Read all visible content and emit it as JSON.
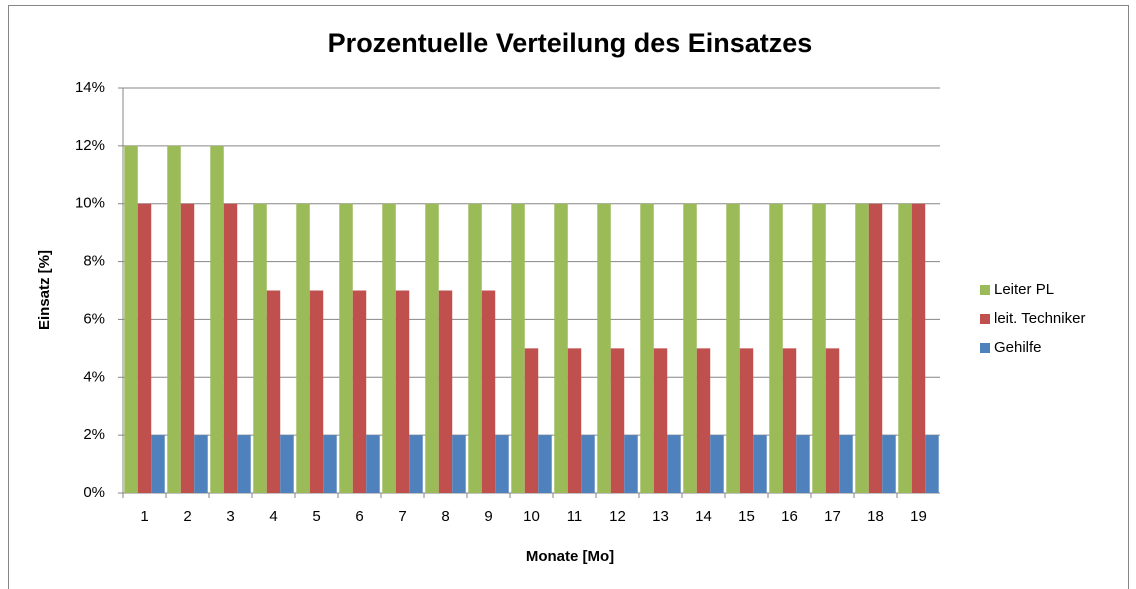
{
  "chart_data": {
    "type": "bar",
    "title": "Prozentuelle Verteilung des Einsatzes",
    "x_label": "Monate [Mo]",
    "y_label": "Einsatz [%]",
    "categories": [
      "1",
      "2",
      "3",
      "4",
      "5",
      "6",
      "7",
      "8",
      "9",
      "10",
      "11",
      "12",
      "13",
      "14",
      "15",
      "16",
      "17",
      "18",
      "19"
    ],
    "series": [
      {
        "name": "Leiter PL",
        "color": "#9bbb59",
        "values": [
          12,
          12,
          12,
          10,
          10,
          10,
          10,
          10,
          10,
          10,
          10,
          10,
          10,
          10,
          10,
          10,
          10,
          10,
          10
        ]
      },
      {
        "name": "leit. Techniker",
        "color": "#c0504d",
        "values": [
          10,
          10,
          10,
          7,
          7,
          7,
          7,
          7,
          7,
          5,
          5,
          5,
          5,
          5,
          5,
          5,
          5,
          10,
          10
        ]
      },
      {
        "name": "Gehilfe",
        "color": "#4f81bd",
        "values": [
          2,
          2,
          2,
          2,
          2,
          2,
          2,
          2,
          2,
          2,
          2,
          2,
          2,
          2,
          2,
          2,
          2,
          2,
          2
        ]
      }
    ],
    "ylim": [
      0,
      14
    ],
    "yticks": [
      {
        "value": 0,
        "label": "0%"
      },
      {
        "value": 2,
        "label": "2%"
      },
      {
        "value": 4,
        "label": "4%"
      },
      {
        "value": 6,
        "label": "6%"
      },
      {
        "value": 8,
        "label": "8%"
      },
      {
        "value": 10,
        "label": "10%"
      },
      {
        "value": 12,
        "label": "12%"
      },
      {
        "value": 14,
        "label": "14%"
      }
    ],
    "grid": true,
    "legend": "right"
  }
}
